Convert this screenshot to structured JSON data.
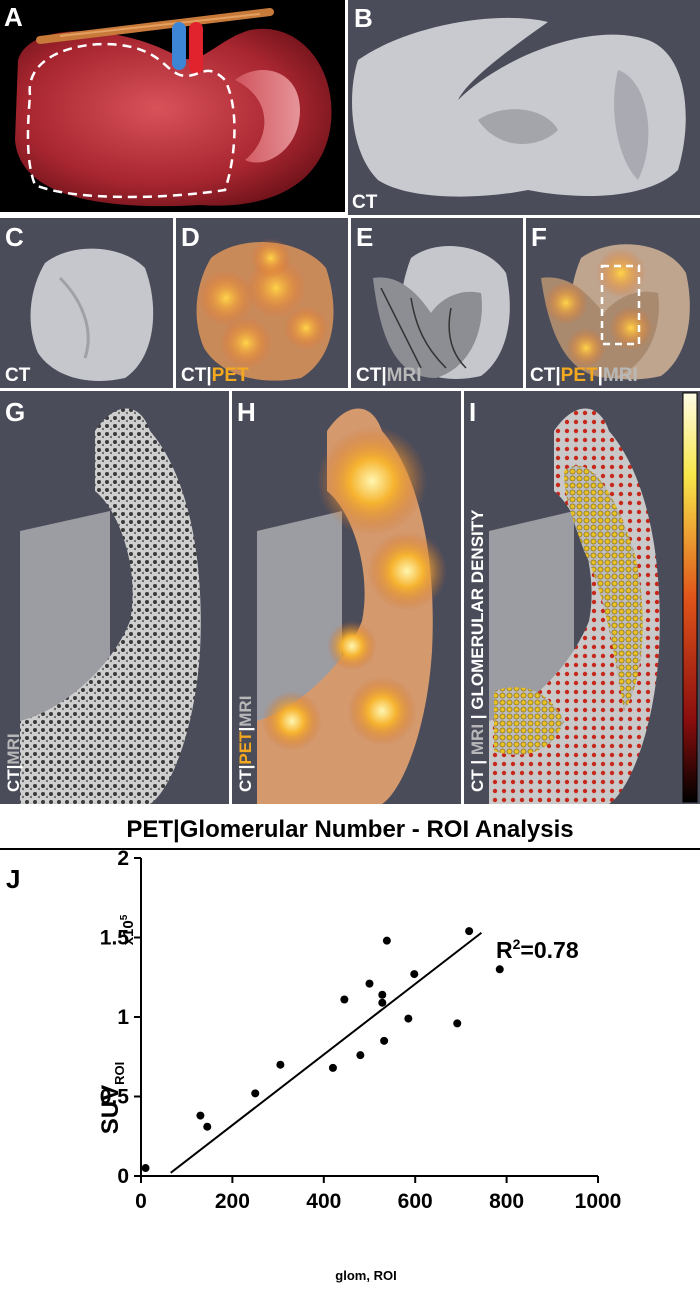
{
  "panels": {
    "A": {
      "letter": "A"
    },
    "B": {
      "letter": "B",
      "modality": [
        "CT"
      ]
    },
    "C": {
      "letter": "C",
      "modality": [
        "CT"
      ]
    },
    "D": {
      "letter": "D",
      "modality": [
        "CT",
        "|",
        "PET"
      ]
    },
    "E": {
      "letter": "E",
      "modality": [
        "CT",
        "|",
        "MRI"
      ]
    },
    "F": {
      "letter": "F",
      "modality": [
        "CT",
        "|",
        "PET",
        "|",
        "MRI"
      ]
    },
    "G": {
      "letter": "G",
      "modality": [
        "CT",
        "|",
        "MRI"
      ]
    },
    "H": {
      "letter": "H",
      "modality": [
        "CT",
        "|",
        "PET",
        "|",
        "MRI"
      ]
    },
    "I": {
      "letter": "I",
      "modality": [
        "CT",
        " | ",
        "MRI",
        " | ",
        "GLOMERULAR DENSITY"
      ]
    }
  },
  "colors": {
    "pet": "#f4a81d",
    "mri": "#b8b8b8",
    "panel_bg": "#4a4c5a",
    "kidney": "#c0393e"
  },
  "chart_data": {
    "type": "scatter",
    "panel_letter": "J",
    "title": "PET|Glomerular Number - ROI Analysis",
    "xlabel": "glom, ROI",
    "ylabel_main": "SUV",
    "ylabel_sub": "ROI",
    "y_multiplier": "x10",
    "y_multiplier_exp": "5",
    "xlim": [
      0,
      1000
    ],
    "ylim": [
      0,
      2
    ],
    "xticks": [
      0,
      200,
      400,
      600,
      800,
      1000
    ],
    "yticks": [
      0,
      0.5,
      1,
      1.5,
      2
    ],
    "xtick_labels": [
      "0",
      "200",
      "400",
      "600",
      "800",
      "1000"
    ],
    "ytick_labels": [
      "0",
      "0.5",
      "1",
      "1.5",
      "2"
    ],
    "points": [
      {
        "x": 10,
        "y": 0.05
      },
      {
        "x": 130,
        "y": 0.38
      },
      {
        "x": 145,
        "y": 0.31
      },
      {
        "x": 250,
        "y": 0.52
      },
      {
        "x": 305,
        "y": 0.7
      },
      {
        "x": 420,
        "y": 0.68
      },
      {
        "x": 445,
        "y": 1.11
      },
      {
        "x": 480,
        "y": 0.76
      },
      {
        "x": 500,
        "y": 1.21
      },
      {
        "x": 528,
        "y": 1.14
      },
      {
        "x": 528,
        "y": 1.09
      },
      {
        "x": 532,
        "y": 0.85
      },
      {
        "x": 538,
        "y": 1.48
      },
      {
        "x": 585,
        "y": 0.99
      },
      {
        "x": 598,
        "y": 1.27
      },
      {
        "x": 692,
        "y": 0.96
      },
      {
        "x": 718,
        "y": 1.54
      },
      {
        "x": 785,
        "y": 1.3
      }
    ],
    "fit_line": {
      "x1": 65,
      "y1": 0.02,
      "x2": 745,
      "y2": 1.53
    },
    "r_squared_label": "R",
    "r_squared_exp": "2",
    "r_squared_value": "=0.78"
  }
}
